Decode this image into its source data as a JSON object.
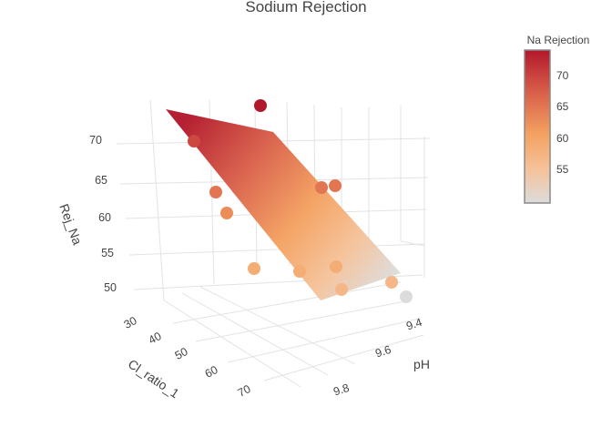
{
  "chart_data": {
    "type": "scatter3d-surface",
    "title": "Sodium Rejection",
    "axes": {
      "x": {
        "label": "pH",
        "ticks": [
          "9.4",
          "9.6",
          "9.8"
        ]
      },
      "y": {
        "label": "Cl_ratio_1",
        "ticks": [
          "30",
          "40",
          "50",
          "60",
          "70"
        ]
      },
      "z": {
        "label": "Rej_Na",
        "ticks": [
          "50",
          "55",
          "60",
          "65",
          "70"
        ]
      }
    },
    "colorbar": {
      "title": "Na Rejection",
      "ticks": [
        "55",
        "60",
        "65",
        "70"
      ],
      "range": [
        50,
        74
      ],
      "colors": [
        "#dcdcdc",
        "#f5c29a",
        "#f4a261",
        "#d9604a",
        "#b2182b"
      ]
    },
    "series": [
      {
        "type": "surface",
        "corners": [
          {
            "cl_ratio": 25,
            "z": 74
          },
          {
            "cl_ratio": 50,
            "z": 72
          },
          {
            "cl_ratio": 72,
            "z": 50
          },
          {
            "cl_ratio": 45,
            "z": 52
          }
        ]
      },
      {
        "type": "scatter",
        "points": [
          {
            "z": 74
          },
          {
            "z": 70
          },
          {
            "z": 66
          },
          {
            "z": 64
          },
          {
            "z": 66
          },
          {
            "z": 66
          },
          {
            "z": 60
          },
          {
            "z": 60
          },
          {
            "z": 60
          },
          {
            "z": 58
          },
          {
            "z": 58
          },
          {
            "z": 50
          }
        ]
      }
    ]
  }
}
